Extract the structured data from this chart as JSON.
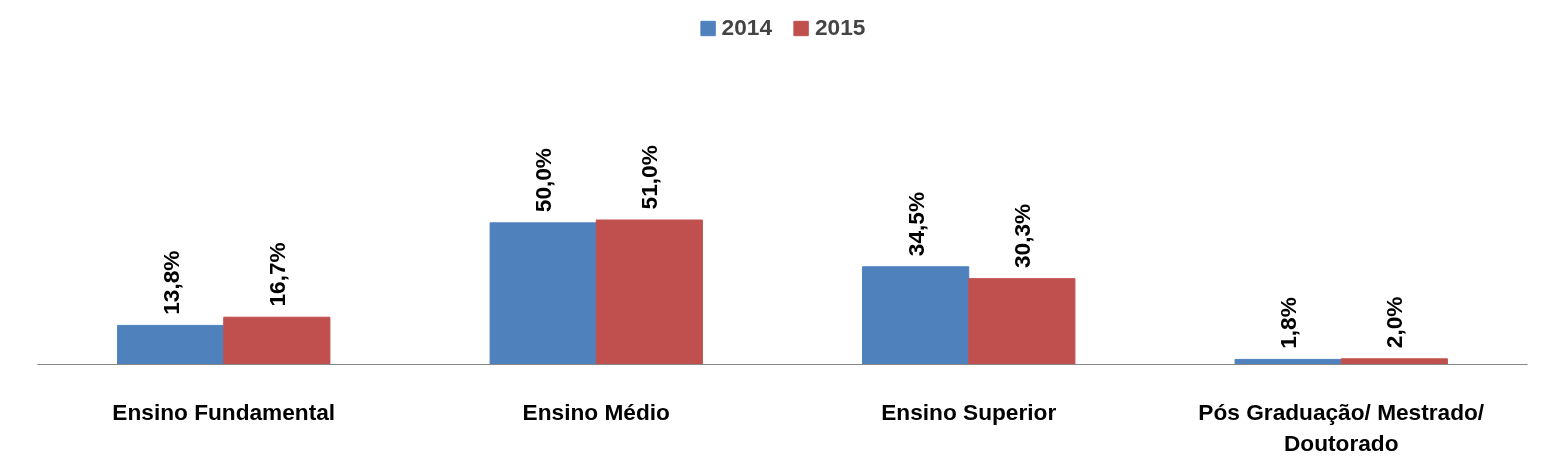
{
  "chart_data": {
    "type": "bar",
    "categories": [
      "Ensino Fundamental",
      "Ensino Médio",
      "Ensino Superior",
      "Pós Graduação/ Mestrado/ Doutorado"
    ],
    "series": [
      {
        "name": "2014",
        "color": "#4f81bd",
        "values": [
          13.8,
          50.0,
          34.5,
          1.8
        ],
        "value_labels": [
          "13,8%",
          "50,0%",
          "34,5%",
          "1,8%"
        ]
      },
      {
        "name": "2015",
        "color": "#c0504d",
        "values": [
          16.7,
          51.0,
          30.3,
          2.0
        ],
        "value_labels": [
          "16,7%",
          "51,0%",
          "30,3%",
          "2,0%"
        ]
      }
    ],
    "legend": "top"
  }
}
